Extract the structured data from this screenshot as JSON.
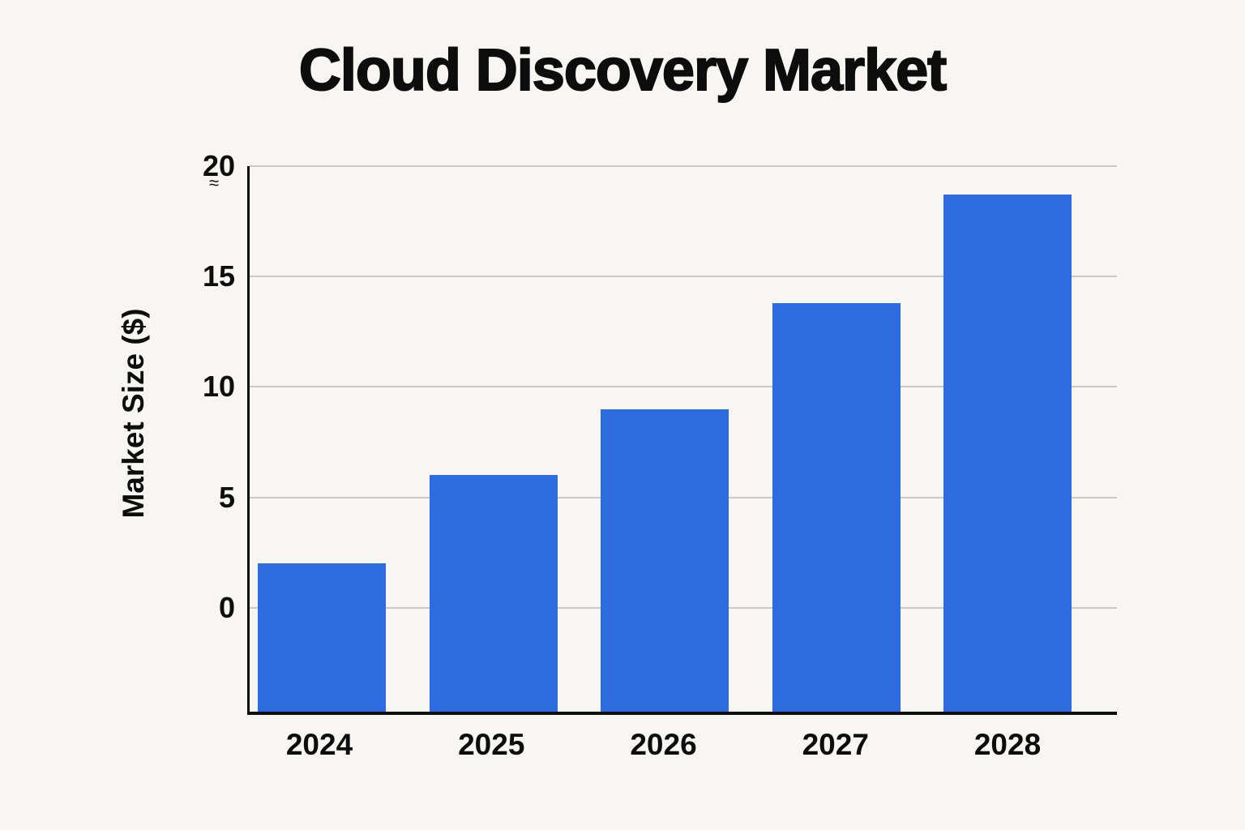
{
  "title": "Cloud Discovery Market",
  "colors": {
    "background": "#f8f6f2",
    "bar": "#2d6be0",
    "grid": "#cbc9c5",
    "axis": "#0d0d0d"
  },
  "axis_break_symbol": "≈",
  "chart_data": {
    "type": "bar",
    "title": "Cloud Discovery Market",
    "xlabel": "",
    "ylabel": "Market Size ($)",
    "categories": [
      "2024",
      "2025",
      "2026",
      "2027",
      "2028"
    ],
    "values": [
      2,
      6,
      9,
      13.8,
      18.7
    ],
    "yticks": [
      0,
      5,
      10,
      15,
      20
    ],
    "ylim": [
      -4.7,
      20
    ],
    "grid": true,
    "legend": "none",
    "bar_baseline_note": "bars extend below the 0 gridline to the x-axis baseline"
  }
}
